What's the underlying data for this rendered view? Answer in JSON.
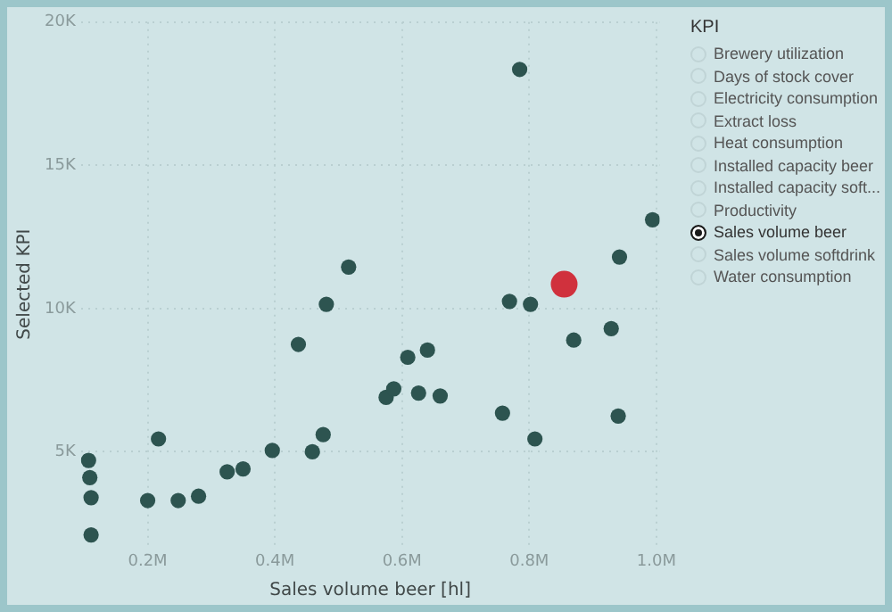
{
  "chart_data": [
    {
      "type": "scatter",
      "xlabel": "Sales volume beer [hl]",
      "ylabel": "Selected KPI",
      "grid": true,
      "legend": false,
      "marker": "circle",
      "xlim": [
        95000,
        1005000
      ],
      "xticks": [
        {
          "value": 200000,
          "label": "0.2M"
        },
        {
          "value": 400000,
          "label": "0.4M"
        },
        {
          "value": 600000,
          "label": "0.6M"
        },
        {
          "value": 800000,
          "label": "0.8M"
        },
        {
          "value": 1000000,
          "label": "1.0M"
        }
      ],
      "ylim": [
        1700,
        20000
      ],
      "yticks": [
        {
          "value": 5000,
          "label": "5K"
        },
        {
          "value": 10000,
          "label": "10K"
        },
        {
          "value": 15000,
          "label": "15K"
        },
        {
          "value": 20000,
          "label": "20K"
        }
      ],
      "series": [
        {
          "color": "#2d5450",
          "x": [
            107000,
            109000,
            111000,
            111000,
            200000,
            217000,
            248000,
            280000,
            325000,
            350000,
            396000,
            437000,
            459000,
            476000,
            481000,
            516000,
            575000,
            587000,
            609000,
            626000,
            640000,
            660000,
            758000,
            769000,
            785000,
            802000,
            809000,
            870000,
            929000,
            942000,
            940000,
            994000
          ],
          "values": [
            4700,
            4100,
            3400,
            2100,
            3300,
            5450,
            3300,
            3450,
            4300,
            4400,
            5050,
            8750,
            5000,
            5600,
            10150,
            11450,
            6900,
            7200,
            8300,
            7050,
            8550,
            6950,
            6350,
            10250,
            18350,
            10150,
            5450,
            8900,
            9300,
            11800,
            6250,
            13100
          ]
        },
        {
          "color": "#d0313d",
          "x": [
            855000
          ],
          "values": [
            10850
          ]
        }
      ]
    },
    {
      "type": "other",
      "title": "KPI",
      "categories": [
        "Brewery utilization",
        "Days of stock cover",
        "Electricity consumption",
        "Extract loss",
        "Heat consumption",
        "Installed capacity beer",
        "Installed capacity soft...",
        "Productivity",
        "Sales volume beer",
        "Sales volume softdrink",
        "Water consumption"
      ],
      "colors": [
        null,
        null,
        null,
        null,
        null,
        null,
        null,
        null,
        "#1a1a1a",
        null,
        null
      ]
    }
  ]
}
